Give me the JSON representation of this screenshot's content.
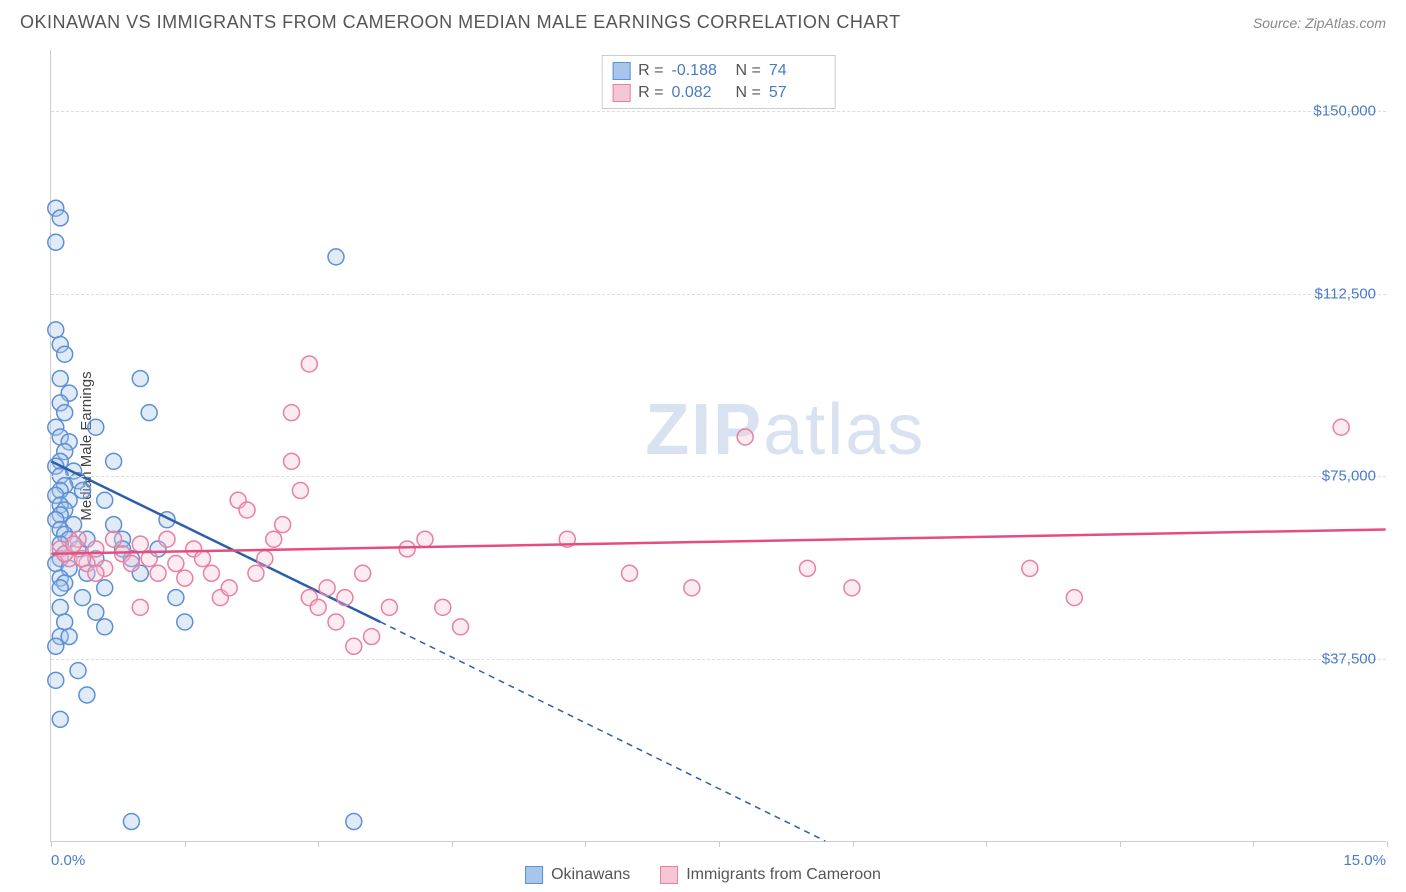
{
  "title": "OKINAWAN VS IMMIGRANTS FROM CAMEROON MEDIAN MALE EARNINGS CORRELATION CHART",
  "source_label": "Source: ZipAtlas.com",
  "ylabel": "Median Male Earnings",
  "watermark_1": "ZIP",
  "watermark_2": "atlas",
  "chart": {
    "type": "scatter-correlation",
    "background": "#ffffff",
    "grid_color": "#dddddd",
    "axis_color": "#cccccc",
    "label_color": "#4a7bc8",
    "xlim": [
      0,
      15
    ],
    "ylim": [
      0,
      162500
    ],
    "x_tick_positions": [
      0,
      1.5,
      3.0,
      4.5,
      6.0,
      7.5,
      9.0,
      10.5,
      12.0,
      13.5,
      15.0
    ],
    "x_tick_labels_shown": {
      "first": "0.0%",
      "last": "15.0%"
    },
    "y_gridlines": [
      37500,
      75000,
      112500,
      150000
    ],
    "y_tick_labels": [
      "$37,500",
      "$75,000",
      "$112,500",
      "$150,000"
    ],
    "marker_radius": 8,
    "marker_stroke_width": 1.5,
    "marker_fill_opacity": 0.35,
    "trend_line_width": 2.5,
    "series": [
      {
        "name": "Okinawans",
        "fill": "#a8c6ec",
        "stroke": "#5b8fd6",
        "line_color": "#2d5fa8",
        "R": "-0.188",
        "N": "74",
        "trend": {
          "x1": 0,
          "y1": 78000,
          "x2_solid": 3.7,
          "y2_solid": 45000,
          "x2_dash": 8.7,
          "y2_dash": 0
        },
        "points": [
          [
            0.05,
            130000
          ],
          [
            0.1,
            128000
          ],
          [
            0.05,
            123000
          ],
          [
            0.05,
            105000
          ],
          [
            0.1,
            102000
          ],
          [
            0.15,
            100000
          ],
          [
            0.1,
            95000
          ],
          [
            0.2,
            92000
          ],
          [
            0.1,
            90000
          ],
          [
            0.15,
            88000
          ],
          [
            0.05,
            85000
          ],
          [
            0.1,
            83000
          ],
          [
            0.2,
            82000
          ],
          [
            0.15,
            80000
          ],
          [
            0.1,
            78000
          ],
          [
            0.05,
            77000
          ],
          [
            0.25,
            76000
          ],
          [
            0.1,
            75000
          ],
          [
            0.3,
            74000
          ],
          [
            0.15,
            73000
          ],
          [
            0.1,
            72000
          ],
          [
            0.05,
            71000
          ],
          [
            0.2,
            70000
          ],
          [
            0.1,
            69000
          ],
          [
            0.15,
            68000
          ],
          [
            0.1,
            67000
          ],
          [
            0.05,
            66000
          ],
          [
            0.25,
            65000
          ],
          [
            0.1,
            64000
          ],
          [
            0.15,
            63000
          ],
          [
            0.2,
            62000
          ],
          [
            0.1,
            61000
          ],
          [
            0.3,
            60000
          ],
          [
            0.15,
            59000
          ],
          [
            0.1,
            58000
          ],
          [
            0.05,
            57000
          ],
          [
            0.2,
            56000
          ],
          [
            0.4,
            55000
          ],
          [
            0.1,
            54000
          ],
          [
            0.15,
            53000
          ],
          [
            0.1,
            52000
          ],
          [
            0.35,
            50000
          ],
          [
            0.1,
            48000
          ],
          [
            0.5,
            47000
          ],
          [
            0.15,
            45000
          ],
          [
            0.6,
            44000
          ],
          [
            0.1,
            42000
          ],
          [
            0.05,
            40000
          ],
          [
            0.7,
            78000
          ],
          [
            0.8,
            62000
          ],
          [
            0.9,
            58000
          ],
          [
            1.0,
            55000
          ],
          [
            1.1,
            88000
          ],
          [
            1.2,
            60000
          ],
          [
            1.3,
            66000
          ],
          [
            1.0,
            95000
          ],
          [
            1.4,
            50000
          ],
          [
            1.5,
            45000
          ],
          [
            0.5,
            85000
          ],
          [
            0.6,
            70000
          ],
          [
            0.7,
            65000
          ],
          [
            0.8,
            60000
          ],
          [
            0.4,
            30000
          ],
          [
            0.3,
            35000
          ],
          [
            0.9,
            4000
          ],
          [
            3.2,
            120000
          ],
          [
            3.4,
            4000
          ],
          [
            0.1,
            25000
          ],
          [
            0.05,
            33000
          ],
          [
            0.2,
            42000
          ],
          [
            0.4,
            62000
          ],
          [
            0.5,
            58000
          ],
          [
            0.6,
            52000
          ],
          [
            0.35,
            72000
          ]
        ]
      },
      {
        "name": "Immigrants from Cameroon",
        "fill": "#f5c6d3",
        "stroke": "#e97fa3",
        "line_color": "#e54d7e",
        "R": "0.082",
        "N": "57",
        "trend": {
          "x1": 0,
          "y1": 59000,
          "x2_solid": 15,
          "y2_solid": 64000
        },
        "points": [
          [
            0.1,
            60000
          ],
          [
            0.2,
            58000
          ],
          [
            0.3,
            62000
          ],
          [
            0.15,
            59000
          ],
          [
            0.25,
            61000
          ],
          [
            0.4,
            57000
          ],
          [
            0.5,
            60000
          ],
          [
            0.35,
            58000
          ],
          [
            0.6,
            56000
          ],
          [
            0.7,
            62000
          ],
          [
            0.8,
            59000
          ],
          [
            0.9,
            57000
          ],
          [
            1.0,
            61000
          ],
          [
            1.1,
            58000
          ],
          [
            1.2,
            55000
          ],
          [
            1.3,
            62000
          ],
          [
            1.4,
            57000
          ],
          [
            1.0,
            48000
          ],
          [
            1.5,
            54000
          ],
          [
            1.6,
            60000
          ],
          [
            1.7,
            58000
          ],
          [
            1.8,
            55000
          ],
          [
            1.9,
            50000
          ],
          [
            2.0,
            52000
          ],
          [
            2.1,
            70000
          ],
          [
            2.2,
            68000
          ],
          [
            2.3,
            55000
          ],
          [
            2.4,
            58000
          ],
          [
            2.5,
            62000
          ],
          [
            2.6,
            65000
          ],
          [
            2.7,
            78000
          ],
          [
            2.8,
            72000
          ],
          [
            2.9,
            50000
          ],
          [
            3.0,
            48000
          ],
          [
            3.1,
            52000
          ],
          [
            3.2,
            45000
          ],
          [
            3.3,
            50000
          ],
          [
            3.4,
            40000
          ],
          [
            3.5,
            55000
          ],
          [
            3.6,
            42000
          ],
          [
            3.8,
            48000
          ],
          [
            2.9,
            98000
          ],
          [
            2.7,
            88000
          ],
          [
            4.0,
            60000
          ],
          [
            4.2,
            62000
          ],
          [
            4.4,
            48000
          ],
          [
            4.6,
            44000
          ],
          [
            5.8,
            62000
          ],
          [
            6.5,
            55000
          ],
          [
            7.2,
            52000
          ],
          [
            7.8,
            83000
          ],
          [
            8.5,
            56000
          ],
          [
            9.0,
            52000
          ],
          [
            11.0,
            56000
          ],
          [
            11.5,
            50000
          ],
          [
            14.5,
            85000
          ],
          [
            0.5,
            55000
          ]
        ]
      }
    ]
  },
  "stats_box": {
    "rows": [
      {
        "swatch_fill": "#a8c6ec",
        "swatch_stroke": "#5b8fd6",
        "r_label": "R =",
        "r_val": "-0.188",
        "n_label": "N =",
        "n_val": "74"
      },
      {
        "swatch_fill": "#f5c6d3",
        "swatch_stroke": "#e97fa3",
        "r_label": "R =",
        "r_val": "0.082",
        "n_label": "N =",
        "n_val": "57"
      }
    ]
  },
  "legend": [
    {
      "swatch_fill": "#a8c6ec",
      "swatch_stroke": "#5b8fd6",
      "label": "Okinawans"
    },
    {
      "swatch_fill": "#f5c6d3",
      "swatch_stroke": "#e97fa3",
      "label": "Immigrants from Cameroon"
    }
  ]
}
